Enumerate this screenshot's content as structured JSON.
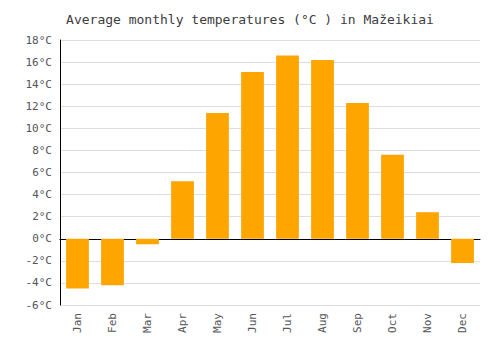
{
  "chart_data": {
    "type": "bar",
    "title": "Average monthly temperatures (°C ) in Mažeikiai",
    "categories": [
      "Jan",
      "Feb",
      "Mar",
      "Apr",
      "May",
      "Jun",
      "Jul",
      "Aug",
      "Sep",
      "Oct",
      "Nov",
      "Dec"
    ],
    "values": [
      -4.5,
      -4.2,
      -0.5,
      5.2,
      11.4,
      15.1,
      16.6,
      16.2,
      12.3,
      7.6,
      2.4,
      -2.2
    ],
    "color": "#FFA500",
    "ylim": [
      -6,
      18
    ],
    "yticks": [
      {
        "value": -6,
        "label": "-6°C"
      },
      {
        "value": -4,
        "label": "-4°C"
      },
      {
        "value": -2,
        "label": "-2°C"
      },
      {
        "value": 0,
        "label": "0°C"
      },
      {
        "value": 2,
        "label": "2°C"
      },
      {
        "value": 4,
        "label": "4°C"
      },
      {
        "value": 6,
        "label": "6°C"
      },
      {
        "value": 8,
        "label": "8°C"
      },
      {
        "value": 10,
        "label": "10°C"
      },
      {
        "value": 12,
        "label": "12°C"
      },
      {
        "value": 14,
        "label": "14°C"
      },
      {
        "value": 16,
        "label": "16°C"
      },
      {
        "value": 18,
        "label": "18°C"
      }
    ],
    "grid": true
  }
}
